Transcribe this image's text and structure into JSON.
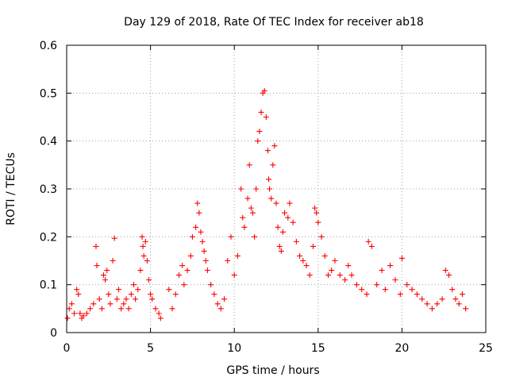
{
  "chart_data": {
    "type": "scatter",
    "title": "Day 129 of 2018, Rate Of TEC Index for receiver ab18",
    "xlabel": "GPS time / hours",
    "ylabel": "ROTI / TECUs",
    "xlim": [
      0,
      25
    ],
    "ylim": [
      0,
      0.6
    ],
    "xticks": [
      0,
      5,
      10,
      15,
      20,
      25
    ],
    "xtick_labels": [
      "0",
      "5",
      "10",
      "15",
      "20",
      "25"
    ],
    "yticks": [
      0,
      0.1,
      0.2,
      0.3,
      0.4,
      0.5,
      0.6
    ],
    "ytick_labels": [
      "0",
      "0.1",
      "0.2",
      "0.3",
      "0.4",
      "0.5",
      "0.6"
    ],
    "grid": true,
    "marker": "+",
    "series": [
      {
        "name": "ROTI",
        "color": "#ff0000",
        "x": [
          0.05,
          0.15,
          0.3,
          0.45,
          0.6,
          0.7,
          0.8,
          0.9,
          1.0,
          1.2,
          1.4,
          1.6,
          1.75,
          1.8,
          1.95,
          2.1,
          2.2,
          2.3,
          2.4,
          2.5,
          2.6,
          2.75,
          2.85,
          3.0,
          3.1,
          3.25,
          3.4,
          3.55,
          3.7,
          3.85,
          4.0,
          4.1,
          4.25,
          4.4,
          4.5,
          4.55,
          4.6,
          4.7,
          4.8,
          4.9,
          5.0,
          5.1,
          5.3,
          5.5,
          5.6,
          6.1,
          6.3,
          6.5,
          6.7,
          6.9,
          7.0,
          7.2,
          7.4,
          7.5,
          7.7,
          7.8,
          7.9,
          8.0,
          8.1,
          8.2,
          8.3,
          8.4,
          8.6,
          8.8,
          9.0,
          9.2,
          9.4,
          9.6,
          9.8,
          10.0,
          10.2,
          10.4,
          10.5,
          10.6,
          10.8,
          10.9,
          11.0,
          11.1,
          11.2,
          11.3,
          11.4,
          11.5,
          11.6,
          11.7,
          11.8,
          11.9,
          12.0,
          12.05,
          12.1,
          12.2,
          12.3,
          12.4,
          12.5,
          12.6,
          12.7,
          12.8,
          12.9,
          13.0,
          13.2,
          13.3,
          13.5,
          13.7,
          13.9,
          14.1,
          14.3,
          14.5,
          14.7,
          14.8,
          14.9,
          15.0,
          15.2,
          15.4,
          15.6,
          15.8,
          16.0,
          16.3,
          16.6,
          16.8,
          17.0,
          17.3,
          17.6,
          17.9,
          18.0,
          18.2,
          18.5,
          18.8,
          19.0,
          19.3,
          19.6,
          19.9,
          20.0,
          20.3,
          20.6,
          20.9,
          21.2,
          21.5,
          21.8,
          22.1,
          22.4,
          22.6,
          22.8,
          23.0,
          23.2,
          23.4,
          23.6,
          23.8
        ],
        "y": [
          0.03,
          0.05,
          0.06,
          0.04,
          0.09,
          0.08,
          0.04,
          0.03,
          0.035,
          0.04,
          0.05,
          0.06,
          0.18,
          0.14,
          0.07,
          0.05,
          0.12,
          0.11,
          0.13,
          0.08,
          0.06,
          0.15,
          0.197,
          0.07,
          0.09,
          0.05,
          0.06,
          0.07,
          0.05,
          0.08,
          0.1,
          0.07,
          0.09,
          0.13,
          0.2,
          0.18,
          0.16,
          0.19,
          0.15,
          0.11,
          0.08,
          0.07,
          0.05,
          0.04,
          0.03,
          0.09,
          0.05,
          0.08,
          0.12,
          0.14,
          0.1,
          0.13,
          0.16,
          0.2,
          0.22,
          0.27,
          0.25,
          0.21,
          0.19,
          0.17,
          0.15,
          0.13,
          0.1,
          0.08,
          0.06,
          0.05,
          0.07,
          0.15,
          0.2,
          0.12,
          0.16,
          0.3,
          0.24,
          0.22,
          0.28,
          0.35,
          0.26,
          0.25,
          0.2,
          0.3,
          0.4,
          0.42,
          0.46,
          0.5,
          0.505,
          0.45,
          0.38,
          0.32,
          0.3,
          0.28,
          0.35,
          0.39,
          0.27,
          0.22,
          0.18,
          0.17,
          0.21,
          0.25,
          0.24,
          0.27,
          0.23,
          0.19,
          0.16,
          0.15,
          0.14,
          0.12,
          0.18,
          0.26,
          0.25,
          0.23,
          0.2,
          0.16,
          0.12,
          0.13,
          0.15,
          0.12,
          0.11,
          0.14,
          0.12,
          0.1,
          0.09,
          0.08,
          0.19,
          0.18,
          0.1,
          0.13,
          0.09,
          0.14,
          0.11,
          0.08,
          0.155,
          0.1,
          0.09,
          0.08,
          0.07,
          0.06,
          0.05,
          0.06,
          0.07,
          0.13,
          0.12,
          0.09,
          0.07,
          0.06,
          0.08,
          0.05
        ]
      }
    ]
  }
}
